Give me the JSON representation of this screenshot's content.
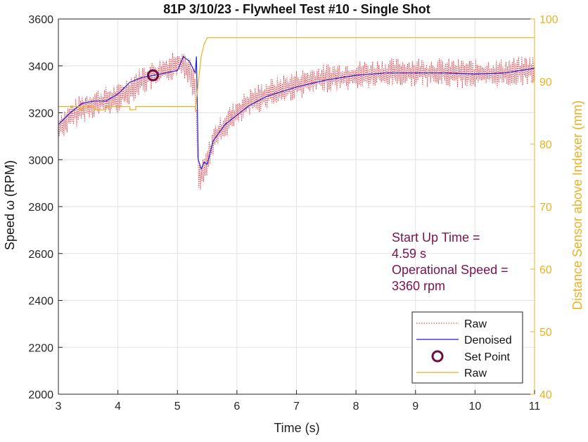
{
  "chart_data": {
    "type": "line",
    "title": "81P 3/10/23 - Flywheel Test #10 - Single Shot",
    "xlabel": "Time (s)",
    "ylabel_left": "Speed ω (RPM)",
    "ylabel_right": "Distance Sensor above Indexer (mm)",
    "xlim": [
      3,
      11
    ],
    "ylim_left": [
      2000,
      3600
    ],
    "ylim_right": [
      40,
      100
    ],
    "xticks": [
      "3",
      "4",
      "5",
      "6",
      "7",
      "8",
      "9",
      "10",
      "11"
    ],
    "yticks_left": [
      "2000",
      "2200",
      "2400",
      "2600",
      "2800",
      "3000",
      "3200",
      "3400",
      "3600"
    ],
    "yticks_right": [
      "40",
      "50",
      "60",
      "70",
      "80",
      "90",
      "100"
    ],
    "grid": true,
    "legend_position": "bottom-right",
    "annotation": {
      "lines": [
        "Start Up Time =",
        "4.59 s",
        "Operational Speed =",
        "3360 rpm"
      ],
      "color": "#7a1250"
    },
    "legend": [
      {
        "label": "Raw",
        "style": "dotted",
        "color": "#e8202a"
      },
      {
        "label": "Denoised",
        "style": "solid",
        "color": "#1f1fd6"
      },
      {
        "label": "Set Point",
        "style": "circle",
        "color": "#6b0f3f"
      },
      {
        "label": "Raw",
        "style": "solid",
        "color": "#edb120"
      }
    ],
    "series": [
      {
        "name": "Raw",
        "axis": "left",
        "color": "#e8202a",
        "style": "dotted",
        "x": [
          3.0,
          3.2,
          3.4,
          3.6,
          3.8,
          4.0,
          4.2,
          4.4,
          4.6,
          4.8,
          5.0,
          5.1,
          5.2,
          5.3,
          5.35,
          5.4,
          5.5,
          5.6,
          5.8,
          6.0,
          6.2,
          6.5,
          7.0,
          7.5,
          8.0,
          8.5,
          9.0,
          9.5,
          10.0,
          10.5,
          11.0
        ],
        "y": [
          3140,
          3180,
          3220,
          3240,
          3250,
          3260,
          3300,
          3340,
          3360,
          3380,
          3420,
          3410,
          3380,
          3300,
          2950,
          2920,
          2990,
          3080,
          3150,
          3200,
          3240,
          3280,
          3320,
          3350,
          3360,
          3370,
          3375,
          3370,
          3365,
          3370,
          3385
        ],
        "noise_amplitude": 50
      },
      {
        "name": "Denoised",
        "axis": "left",
        "color": "#1f1fd6",
        "x": [
          3.0,
          3.2,
          3.4,
          3.6,
          3.8,
          4.0,
          4.2,
          4.4,
          4.6,
          4.8,
          5.0,
          5.1,
          5.2,
          5.3,
          5.32,
          5.35,
          5.4,
          5.45,
          5.5,
          5.6,
          5.8,
          6.0,
          6.2,
          6.5,
          7.0,
          7.5,
          8.0,
          8.5,
          9.0,
          9.5,
          10.0,
          10.5,
          11.0
        ],
        "y": [
          3150,
          3200,
          3240,
          3250,
          3250,
          3280,
          3330,
          3350,
          3360,
          3370,
          3380,
          3440,
          3420,
          3370,
          3440,
          3000,
          2960,
          2990,
          2980,
          3080,
          3150,
          3190,
          3230,
          3270,
          3310,
          3340,
          3360,
          3370,
          3370,
          3370,
          3365,
          3370,
          3390
        ]
      },
      {
        "name": "Set Point",
        "axis": "left",
        "color": "#6b0f3f",
        "x": [
          4.59
        ],
        "y": [
          3360
        ]
      },
      {
        "name": "Raw",
        "axis": "right",
        "color": "#edb120",
        "x": [
          3.0,
          3.35,
          3.35,
          3.4,
          3.4,
          3.6,
          3.6,
          3.8,
          3.8,
          4.2,
          4.2,
          4.3,
          4.3,
          5.3,
          5.3,
          5.4,
          5.45,
          5.5,
          11.0
        ],
        "y": [
          86,
          86,
          85.5,
          85.5,
          86,
          86,
          85.5,
          85.5,
          86,
          86,
          85.5,
          85.5,
          86,
          86,
          85.5,
          94,
          96,
          97,
          97
        ]
      }
    ]
  }
}
